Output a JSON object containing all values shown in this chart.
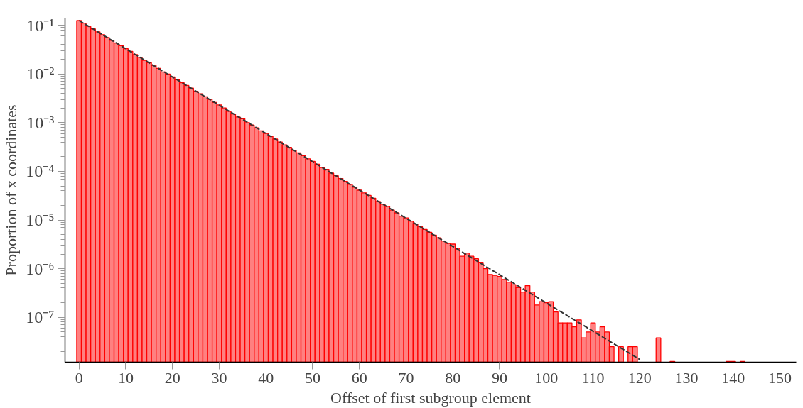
{
  "chart_data": {
    "type": "bar",
    "xlabel": "Offset of first subgroup element",
    "ylabel": "Proportion of x coordinates",
    "log": true,
    "grid": false,
    "x": [
      0,
      1,
      2,
      3,
      4,
      5,
      6,
      7,
      8,
      9,
      10,
      11,
      12,
      13,
      14,
      15,
      16,
      17,
      18,
      19,
      20,
      21,
      22,
      23,
      24,
      25,
      26,
      27,
      28,
      29,
      30,
      31,
      32,
      33,
      34,
      35,
      36,
      37,
      38,
      39,
      40,
      41,
      42,
      43,
      44,
      45,
      46,
      47,
      48,
      49,
      50,
      51,
      52,
      53,
      54,
      55,
      56,
      57,
      58,
      59,
      60,
      61,
      62,
      63,
      64,
      65,
      66,
      67,
      68,
      69,
      70,
      71,
      72,
      73,
      74,
      75,
      76,
      77,
      78,
      79,
      80,
      81,
      82,
      83,
      84,
      85,
      86,
      87,
      88,
      89,
      90,
      91,
      92,
      93,
      94,
      95,
      96,
      97,
      98,
      99,
      100,
      101,
      102,
      103,
      104,
      105,
      106,
      107,
      108,
      109,
      110,
      111,
      112,
      113,
      114,
      115,
      116,
      117,
      118,
      119,
      120,
      121,
      122,
      123,
      124,
      125,
      126,
      127,
      128,
      129,
      130,
      131,
      132,
      133,
      134,
      135,
      136,
      137,
      138,
      139,
      140,
      141,
      142
    ],
    "series": [
      {
        "color": "#ff8080",
        "values": [
          0.125,
          0.11,
          0.096,
          0.084,
          0.073,
          0.064,
          0.056,
          0.049,
          0.043,
          0.038,
          0.033,
          0.029,
          0.025,
          0.022,
          0.019,
          0.017,
          0.015,
          0.013,
          0.011,
          0.0099,
          0.0087,
          0.0076,
          0.0066,
          0.0058,
          0.0051,
          0.0044,
          0.0039,
          0.0034,
          0.003,
          0.0026,
          0.0023,
          0.002,
          0.0017,
          0.0015,
          0.0013,
          0.0012,
          0.001,
          0.00089,
          0.00078,
          0.00068,
          0.0006,
          0.00052,
          0.00046,
          0.0004,
          0.00035,
          0.00031,
          0.00027,
          0.00024,
          0.00021,
          0.00018,
          0.00016,
          0.00014,
          0.00012,
          0.00011,
          9.2e-05,
          8.1e-05,
          7.1e-05,
          6.2e-05,
          5.4e-05,
          4.7e-05,
          4.1e-05,
          3.6e-05,
          3.2e-05,
          2.8e-05,
          2.4e-05,
          2.1e-05,
          1.9e-05,
          1.6e-05,
          1.4e-05,
          1.2e-05,
          1.1e-05,
          9.5e-06,
          8.3e-06,
          7.3e-06,
          6.4e-06,
          5.6e-06,
          4.9e-06,
          4.3e-06,
          3.7e-06,
          3.3e-06,
          3.2e-06,
          2.6e-06,
          1.8e-06,
          2.1e-06,
          1.8e-06,
          1.6e-06,
          1.35e-06,
          1e-06,
          7.6e-07,
          7.3e-07,
          6.9e-07,
          6e-07,
          5.3e-07,
          4.7e-07,
          4.1e-07,
          3.3e-07,
          4.5e-07,
          3.3e-07,
          1.8e-07,
          2.1e-07,
          2e-07,
          2.1e-07,
          1.3e-07,
          7.7e-08,
          7.7e-08,
          7.7e-08,
          6.4e-08,
          8.9e-08,
          3.8e-08,
          5e-08,
          7.7e-08,
          5e-08,
          6.4e-08,
          5e-08,
          2.5e-08,
          null,
          2.5e-08,
          null,
          2.5e-08,
          2.5e-08,
          null,
          null,
          null,
          null,
          3.8e-08,
          null,
          null,
          1.25e-08,
          null,
          null,
          null,
          null,
          null,
          null,
          null,
          null,
          null,
          null,
          null,
          1.25e-08,
          1.25e-08,
          null,
          1.25e-08
        ]
      },
      {
        "type": "line",
        "color": "#333333",
        "line_style": "dashed",
        "x": [
          0,
          120
        ],
        "values": [
          0.125,
          1.37e-08
        ]
      }
    ],
    "xlim": [
      -3,
      153.5
    ],
    "ylim": [
      1.2e-08,
      0.14
    ],
    "xticks": [
      0,
      10,
      20,
      30,
      40,
      50,
      60,
      70,
      80,
      90,
      100,
      110,
      120,
      130,
      140,
      150
    ],
    "yticks": [
      {
        "value": 1e-07,
        "label": "10⁻⁷"
      },
      {
        "value": 1e-06,
        "label": "10⁻⁶"
      },
      {
        "value": 1e-05,
        "label": "10⁻⁵"
      },
      {
        "value": 0.0001,
        "label": "10⁻⁴"
      },
      {
        "value": 0.001,
        "label": "10⁻³"
      },
      {
        "value": 0.01,
        "label": "10⁻²"
      },
      {
        "value": 0.1,
        "label": "10⁻¹"
      }
    ]
  }
}
